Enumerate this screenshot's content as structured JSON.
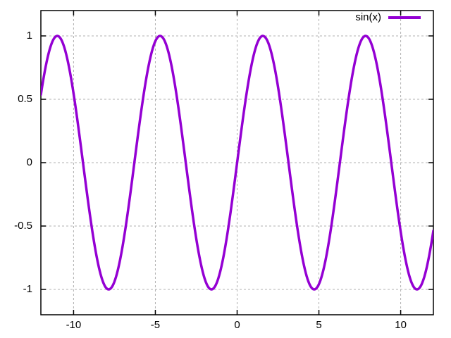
{
  "window": {
    "background": "#ffffff"
  },
  "chart_data": {
    "type": "line",
    "title": "",
    "xlabel": "",
    "ylabel": "",
    "xlim": [
      -12,
      12
    ],
    "ylim": [
      -1.2,
      1.2
    ],
    "x_ticks": [
      -10,
      -5,
      0,
      5,
      10
    ],
    "x_tick_labels": [
      "-10",
      "-5",
      "0",
      "5",
      "10"
    ],
    "y_ticks": [
      -1,
      -0.5,
      0,
      0.5,
      1
    ],
    "y_tick_labels": [
      "-1",
      "-0.5",
      "0",
      "0.5",
      "1"
    ],
    "grid": {
      "show": true,
      "color": "#b0b0b0",
      "style": "dashed"
    },
    "border_color": "#000000",
    "tick_color": "#000000",
    "text_color": "#000000",
    "legend": {
      "position": "top-right",
      "box": false
    },
    "series": [
      {
        "name": "sin(x)",
        "color": "#9400d3",
        "line_width": 3.5,
        "expression": "sin(x)",
        "sample_step": 0.05,
        "points": [
          [
            -12,
            0.537
          ],
          [
            -11.5,
            0.876
          ],
          [
            -11,
            1.0
          ],
          [
            -10.5,
            0.88
          ],
          [
            -10,
            0.544
          ],
          [
            -9.5,
            0.075
          ],
          [
            -9,
            -0.412
          ],
          [
            -8.5,
            -0.798
          ],
          [
            -8,
            -0.989
          ],
          [
            -7.5,
            -0.938
          ],
          [
            -7,
            -0.657
          ],
          [
            -6.5,
            -0.215
          ],
          [
            -6,
            0.279
          ],
          [
            -5.5,
            0.706
          ],
          [
            -5,
            0.959
          ],
          [
            -4.5,
            0.978
          ],
          [
            -4,
            0.757
          ],
          [
            -3.5,
            0.351
          ],
          [
            -3,
            -0.141
          ],
          [
            -2.5,
            -0.599
          ],
          [
            -2,
            -0.909
          ],
          [
            -1.5,
            -0.997
          ],
          [
            -1,
            -0.841
          ],
          [
            -0.5,
            -0.479
          ],
          [
            0,
            0.0
          ],
          [
            0.5,
            0.479
          ],
          [
            1,
            0.841
          ],
          [
            1.5,
            0.997
          ],
          [
            2,
            0.909
          ],
          [
            2.5,
            0.599
          ],
          [
            3,
            0.141
          ],
          [
            3.5,
            -0.351
          ],
          [
            4,
            -0.757
          ],
          [
            4.5,
            -0.978
          ],
          [
            5,
            -0.959
          ],
          [
            5.5,
            -0.706
          ],
          [
            6,
            -0.279
          ],
          [
            6.5,
            0.215
          ],
          [
            7,
            0.657
          ],
          [
            7.5,
            0.938
          ],
          [
            8,
            0.989
          ],
          [
            8.5,
            0.798
          ],
          [
            9,
            0.412
          ],
          [
            9.5,
            -0.075
          ],
          [
            10,
            -0.544
          ],
          [
            10.5,
            -0.88
          ],
          [
            11,
            -1.0
          ],
          [
            11.5,
            -0.876
          ],
          [
            12,
            -0.537
          ]
        ]
      }
    ]
  }
}
